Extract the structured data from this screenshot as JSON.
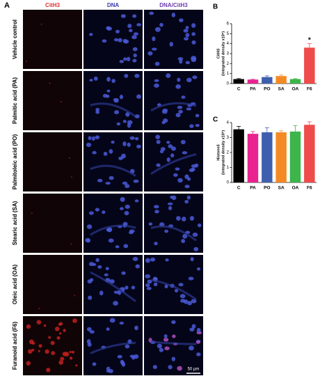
{
  "panel_a": {
    "label": "A",
    "columns": [
      "CitH3",
      "DNA",
      "DNA/CitH3"
    ],
    "rows": [
      "Vehicle control",
      "Palmitic acid (PA)",
      "Palmitoleic acid (PO)",
      "Stearic acid (SA)",
      "Oleic acid (OA)",
      "Furanoid acid (F6)"
    ],
    "scale_bar": "50 µm"
  },
  "chart_data": [
    {
      "type": "bar",
      "panel_label": "B",
      "y_label": [
        "CitH3",
        "(integrated density x10⁶)"
      ],
      "categories": [
        "C",
        "PA",
        "PO",
        "SA",
        "OA",
        "F6"
      ],
      "values": [
        0.45,
        0.4,
        0.65,
        0.75,
        0.45,
        3.6
      ],
      "errors": [
        0.05,
        0.03,
        0.12,
        0.1,
        0.04,
        0.4
      ],
      "colors": [
        "#000000",
        "#e8238f",
        "#3f5fae",
        "#f58a25",
        "#3cb54a",
        "#ef4b4b"
      ],
      "annotations": [
        {
          "text": "*",
          "category": 5
        }
      ],
      "ylim": [
        0,
        6
      ],
      "yticks": [
        0,
        1,
        2,
        3,
        4,
        5,
        6
      ]
    },
    {
      "type": "bar",
      "panel_label": "C",
      "y_label": [
        "Histone3",
        "(integrated density x10⁶)"
      ],
      "categories": [
        "C",
        "PA",
        "PO",
        "SA",
        "OA",
        "F6"
      ],
      "values": [
        3.55,
        3.25,
        3.35,
        3.35,
        3.4,
        3.85
      ],
      "errors": [
        0.2,
        0.15,
        0.3,
        0.1,
        0.4,
        0.2
      ],
      "colors": [
        "#000000",
        "#e8238f",
        "#3f5fae",
        "#f58a25",
        "#3cb54a",
        "#ef4b4b"
      ],
      "annotations": [],
      "ylim": [
        0,
        4
      ],
      "yticks": [
        0,
        1,
        2,
        3,
        4
      ]
    }
  ]
}
